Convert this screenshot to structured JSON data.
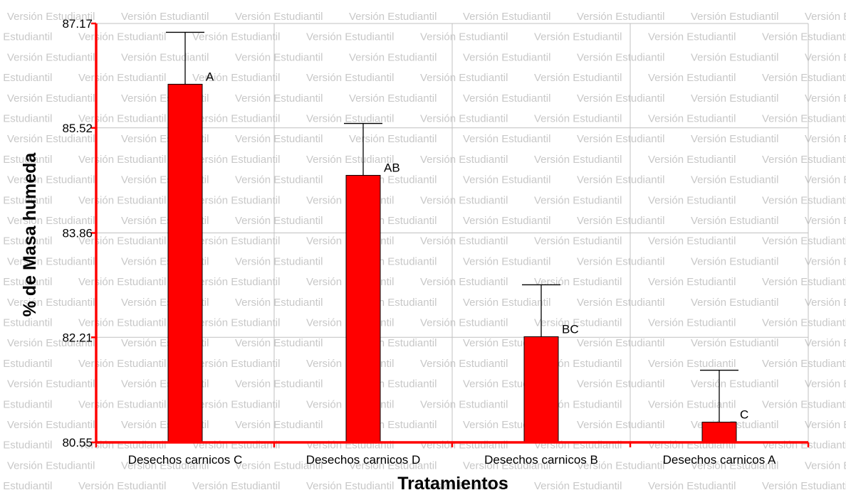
{
  "watermark_text": "Versión Estudiantil",
  "chart_data": {
    "type": "bar",
    "title": "",
    "xlabel": "Tratamientos",
    "ylabel": "% de Masa humeda",
    "categories": [
      "Desechos carnicos C",
      "Desechos carnicos D",
      "Desechos carnicos B",
      "Desechos carnicos A"
    ],
    "values": [
      86.21,
      84.77,
      82.22,
      80.87
    ],
    "errors": [
      0.82,
      0.82,
      0.82,
      0.82
    ],
    "group_labels": [
      "A",
      "AB",
      "BC",
      "C"
    ],
    "yticks": [
      "87.17",
      "85.52",
      "83.86",
      "82.21",
      "80.55"
    ],
    "ylim": [
      80.55,
      87.17
    ],
    "grid": true,
    "legend": "none",
    "colors": {
      "bar_fill": "#ff0000",
      "bar_stroke": "#000000",
      "axis": "#ff0000",
      "grid": "#c0c0c0",
      "watermark": "#c8c8c8"
    }
  }
}
